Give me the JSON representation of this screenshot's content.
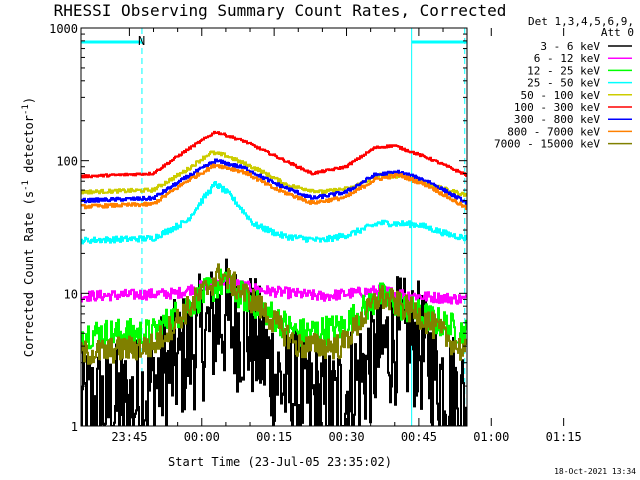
{
  "chart_data": {
    "type": "line",
    "title": "RHESSI Observing Summary Count Rates, Corrected",
    "xlabel": "Start Time (23-Jul-05 23:35:02)",
    "ylabel": "Corrected Count Rate (s⁻¹ detector⁻¹)",
    "ylabel_parts": [
      "Corrected Count Rate (s",
      "-1",
      " detector",
      "-1",
      ")"
    ],
    "yscale": "log",
    "ylim": [
      1,
      1000
    ],
    "xlim_minutes": [
      -10.03,
      69.97
    ],
    "x_ticks": [
      {
        "label": "23:45",
        "minute": 0
      },
      {
        "label": "00:00",
        "minute": 15
      },
      {
        "label": "00:15",
        "minute": 30
      },
      {
        "label": "00:30",
        "minute": 45
      },
      {
        "label": "00:45",
        "minute": 60
      },
      {
        "label": "01:00",
        "minute": 75
      },
      {
        "label": "01:15",
        "minute": 90
      }
    ],
    "y_ticks": [
      {
        "label": "1",
        "value": 1
      },
      {
        "label": "10",
        "value": 10
      },
      {
        "label": "100",
        "value": 100
      },
      {
        "label": "1000",
        "value": 1000
      }
    ],
    "legend_header": [
      "Det 1,3,4,5,6,9,",
      "Att 0"
    ],
    "legend_position": "right",
    "annotation_label": "N",
    "footer_timestamp": "18-Oct-2021 13:34",
    "background": "#ffffff",
    "annotations": {
      "night_bar_1_minutes": [
        -10.03,
        2.6
      ],
      "night_bar_2_minutes": [
        58.5,
        69.97
      ],
      "saa_dashed_lines_minutes": [
        2.6,
        69.5
      ],
      "solid_lines_minutes": [
        -10.03,
        58.5
      ],
      "color": "#00ffff"
    },
    "series": [
      {
        "name": "3 - 6 keV",
        "color": "#000000",
        "noise": 0.9,
        "points": [
          [
            -10,
            1.4
          ],
          [
            0,
            1.4
          ],
          [
            10,
            3
          ],
          [
            19,
            6.5
          ],
          [
            25,
            5
          ],
          [
            32,
            2
          ],
          [
            42,
            1.3
          ],
          [
            50,
            3
          ],
          [
            55,
            4.5
          ],
          [
            60,
            4
          ],
          [
            66,
            2
          ],
          [
            70,
            1.4
          ]
        ]
      },
      {
        "name": "6 - 12 keV",
        "color": "#ff00ff",
        "noise": 0.09,
        "points": [
          [
            -10,
            9.5
          ],
          [
            10,
            10
          ],
          [
            19,
            12.5
          ],
          [
            28,
            10.5
          ],
          [
            40,
            9.5
          ],
          [
            52,
            10.5
          ],
          [
            60,
            9.5
          ],
          [
            70,
            9
          ]
        ]
      },
      {
        "name": "12 - 25 keV",
        "color": "#00ff00",
        "noise": 0.25,
        "points": [
          [
            -10,
            5
          ],
          [
            5,
            5
          ],
          [
            12,
            8
          ],
          [
            19,
            12
          ],
          [
            27,
            8
          ],
          [
            35,
            5
          ],
          [
            44,
            5.5
          ],
          [
            52,
            9.5
          ],
          [
            60,
            7
          ],
          [
            70,
            5
          ]
        ]
      },
      {
        "name": "25 - 50 keV",
        "color": "#00ffff",
        "noise": 0.05,
        "points": [
          [
            -10,
            25
          ],
          [
            5,
            26
          ],
          [
            12,
            35
          ],
          [
            16,
            55
          ],
          [
            18,
            67
          ],
          [
            21,
            55
          ],
          [
            26,
            33
          ],
          [
            32,
            27
          ],
          [
            40,
            25
          ],
          [
            46,
            28
          ],
          [
            52,
            34
          ],
          [
            60,
            33
          ],
          [
            66,
            28
          ],
          [
            70,
            26
          ]
        ]
      },
      {
        "name": "50 - 100 keV",
        "color": "#cccc00",
        "noise": 0.03,
        "points": [
          [
            -10,
            58
          ],
          [
            5,
            60
          ],
          [
            12,
            85
          ],
          [
            17,
            115
          ],
          [
            20,
            110
          ],
          [
            27,
            85
          ],
          [
            33,
            65
          ],
          [
            40,
            58
          ],
          [
            46,
            62
          ],
          [
            52,
            78
          ],
          [
            58,
            75
          ],
          [
            64,
            63
          ],
          [
            70,
            55
          ]
        ]
      },
      {
        "name": "100 - 300 keV",
        "color": "#ff0000",
        "noise": 0.02,
        "points": [
          [
            -10,
            76
          ],
          [
            5,
            80
          ],
          [
            12,
            120
          ],
          [
            18,
            165
          ],
          [
            24,
            140
          ],
          [
            30,
            110
          ],
          [
            38,
            80
          ],
          [
            45,
            90
          ],
          [
            51,
            125
          ],
          [
            55,
            130
          ],
          [
            62,
            105
          ],
          [
            70,
            78
          ]
        ]
      },
      {
        "name": "300 - 800 keV",
        "color": "#0000ff",
        "noise": 0.03,
        "points": [
          [
            -10,
            50
          ],
          [
            5,
            52
          ],
          [
            12,
            75
          ],
          [
            18,
            100
          ],
          [
            24,
            88
          ],
          [
            30,
            68
          ],
          [
            38,
            52
          ],
          [
            45,
            58
          ],
          [
            51,
            78
          ],
          [
            56,
            82
          ],
          [
            62,
            70
          ],
          [
            70,
            48
          ]
        ]
      },
      {
        "name": "800 - 7000 keV",
        "color": "#ff8000",
        "noise": 0.03,
        "points": [
          [
            -10,
            45
          ],
          [
            5,
            47
          ],
          [
            12,
            70
          ],
          [
            18,
            93
          ],
          [
            24,
            82
          ],
          [
            30,
            62
          ],
          [
            38,
            48
          ],
          [
            45,
            53
          ],
          [
            51,
            72
          ],
          [
            56,
            78
          ],
          [
            62,
            65
          ],
          [
            70,
            44
          ]
        ]
      },
      {
        "name": "7000 - 15000 keV",
        "color": "#808000",
        "noise": 0.22,
        "points": [
          [
            -10,
            3.5
          ],
          [
            5,
            4
          ],
          [
            12,
            7.5
          ],
          [
            19,
            14
          ],
          [
            27,
            8
          ],
          [
            35,
            4
          ],
          [
            44,
            4
          ],
          [
            52,
            9.5
          ],
          [
            60,
            7
          ],
          [
            70,
            3.5
          ]
        ]
      }
    ]
  }
}
